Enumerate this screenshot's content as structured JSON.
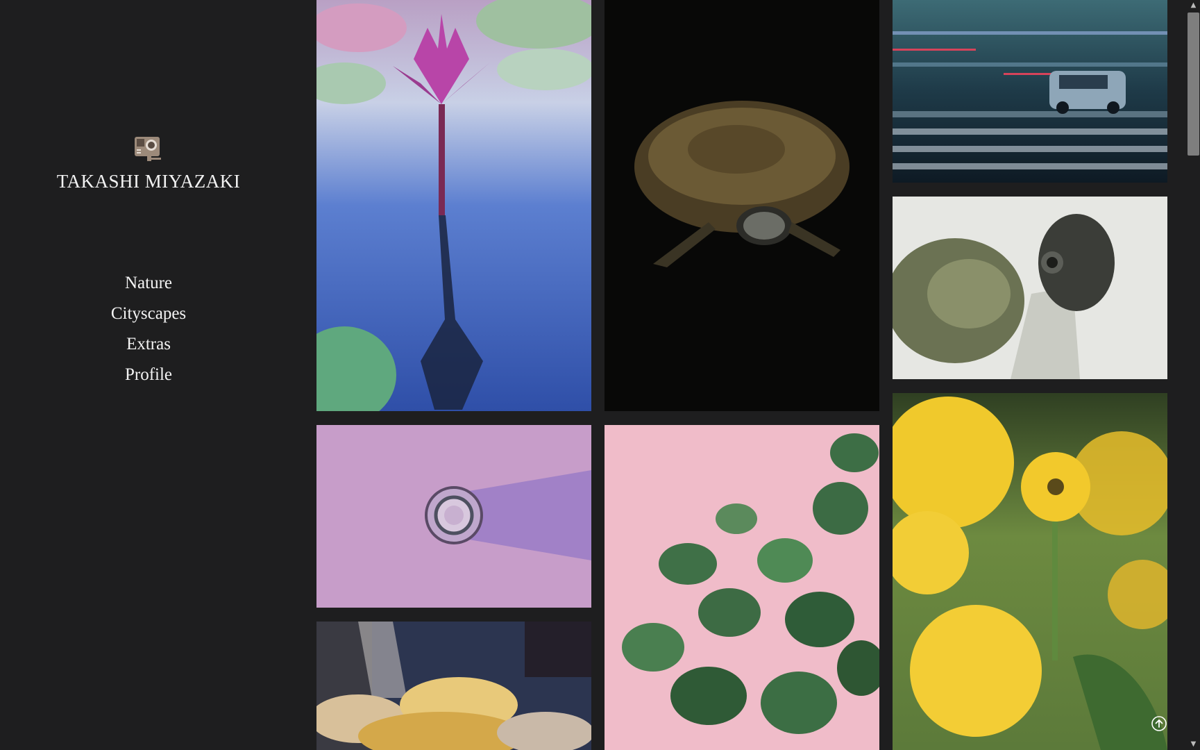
{
  "site": {
    "title": "TAKASHI MIYAZAKI",
    "logo_icon": "action-camera-icon"
  },
  "nav": {
    "items": [
      {
        "label": "Nature"
      },
      {
        "label": "Cityscapes"
      },
      {
        "label": "Extras"
      },
      {
        "label": "Profile"
      }
    ]
  },
  "gallery": {
    "photos": [
      {
        "subject": "pink water lily"
      },
      {
        "subject": "turtle on black background"
      },
      {
        "subject": "city street motion blur with car"
      },
      {
        "subject": "turtle close-up"
      },
      {
        "subject": "glass bottle on purple"
      },
      {
        "subject": "nerve plant on pink"
      },
      {
        "subject": "yellow sunflowers"
      },
      {
        "subject": "food plate"
      }
    ]
  },
  "controls": {
    "back_to_top_icon": "arrow-up-circle-icon",
    "scroll_up_icon": "scroll-up-arrow-icon",
    "scroll_down_icon": "scroll-down-arrow-icon"
  },
  "colors": {
    "background": "#1e1e1f",
    "text": "#f2f2f2",
    "logo": "#9c8a7a"
  }
}
